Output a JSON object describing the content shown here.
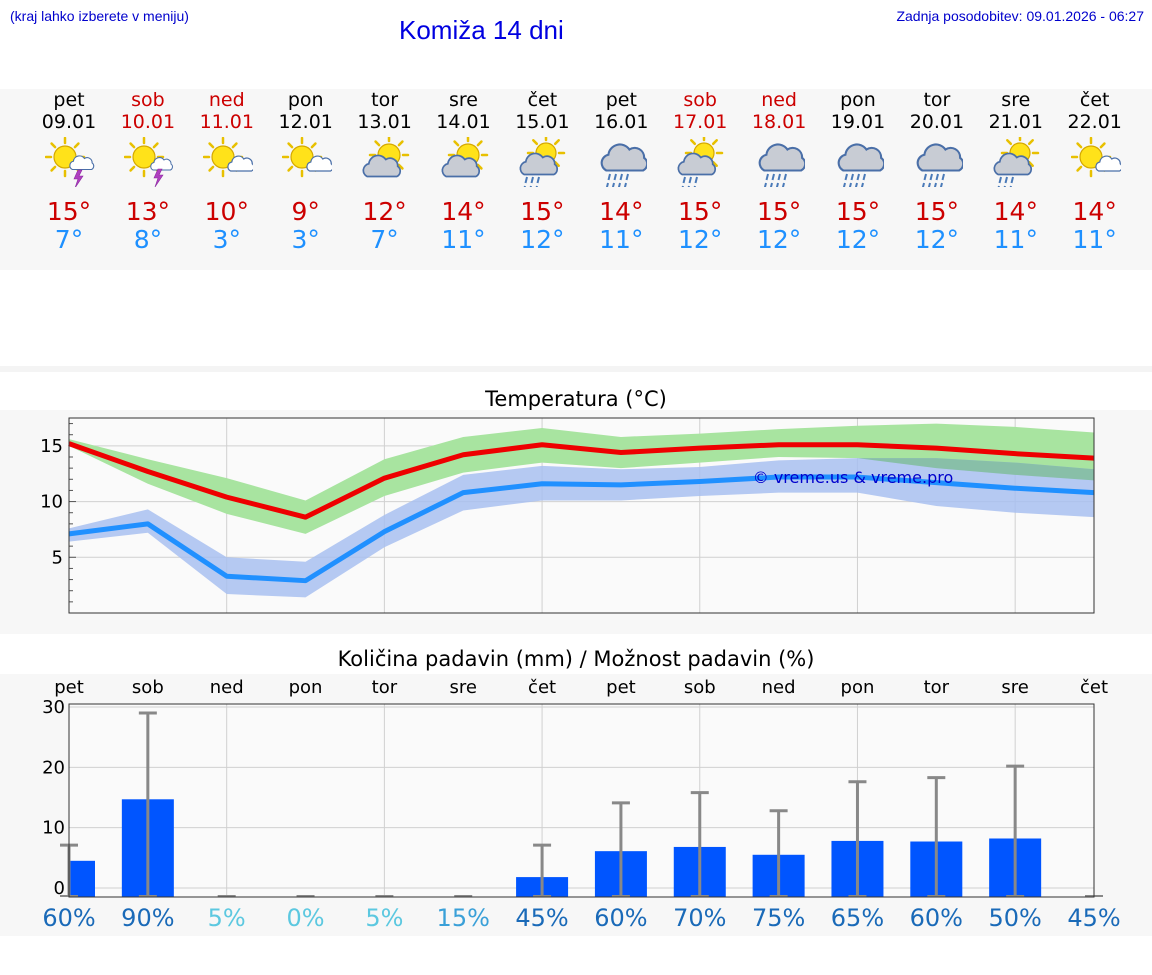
{
  "header": {
    "note": "(kraj lahko izberete v meniju)",
    "title": "Komiža 14 dni",
    "updated": "Zadnja posodobitev: 09.01.2026 - 06:27"
  },
  "days": [
    {
      "name": "pet",
      "date": "09.01",
      "weekend": false,
      "icon": "sun-cloud-thunder-icon",
      "tmax": "15°",
      "tmin": "7°"
    },
    {
      "name": "sob",
      "date": "10.01",
      "weekend": true,
      "icon": "sun-thunder-icon",
      "tmax": "13°",
      "tmin": "8°"
    },
    {
      "name": "ned",
      "date": "11.01",
      "weekend": true,
      "icon": "sun-small-cloud-icon",
      "tmax": "10°",
      "tmin": "3°"
    },
    {
      "name": "pon",
      "date": "12.01",
      "weekend": false,
      "icon": "sun-small-cloud-icon",
      "tmax": "9°",
      "tmin": "3°"
    },
    {
      "name": "tor",
      "date": "13.01",
      "weekend": false,
      "icon": "cloud-sun-icon",
      "tmax": "12°",
      "tmin": "7°"
    },
    {
      "name": "sre",
      "date": "14.01",
      "weekend": false,
      "icon": "cloud-sun-icon",
      "tmax": "14°",
      "tmin": "11°"
    },
    {
      "name": "čet",
      "date": "15.01",
      "weekend": false,
      "icon": "sun-cloud-rain-icon",
      "tmax": "15°",
      "tmin": "12°"
    },
    {
      "name": "pet",
      "date": "16.01",
      "weekend": false,
      "icon": "cloud-rain-icon",
      "tmax": "14°",
      "tmin": "11°"
    },
    {
      "name": "sob",
      "date": "17.01",
      "weekend": true,
      "icon": "sun-cloud-rain-icon",
      "tmax": "15°",
      "tmin": "12°"
    },
    {
      "name": "ned",
      "date": "18.01",
      "weekend": true,
      "icon": "cloud-rain-icon",
      "tmax": "15°",
      "tmin": "12°"
    },
    {
      "name": "pon",
      "date": "19.01",
      "weekend": false,
      "icon": "cloud-rain-icon",
      "tmax": "15°",
      "tmin": "12°"
    },
    {
      "name": "tor",
      "date": "20.01",
      "weekend": false,
      "icon": "cloud-rain-icon",
      "tmax": "15°",
      "tmin": "12°"
    },
    {
      "name": "sre",
      "date": "21.01",
      "weekend": false,
      "icon": "sun-cloud-rain-icon",
      "tmax": "14°",
      "tmin": "11°"
    },
    {
      "name": "čet",
      "date": "22.01",
      "weekend": false,
      "icon": "sun-small-cloud-icon",
      "tmax": "14°",
      "tmin": "11°"
    }
  ],
  "colors": {
    "max_line": "#ee0000",
    "max_band": "#a8e4a0",
    "min_line": "#2090ff",
    "min_band": "#a8c0f0",
    "overlap_band": "#88bfa8",
    "bar": "#0055ff",
    "whisker": "#888888"
  },
  "chart_data": [
    {
      "type": "line",
      "title": "Temperatura (°C)",
      "watermark": "© vreme.us & vreme.pro",
      "x": [
        0,
        1,
        2,
        3,
        4,
        5,
        6,
        7,
        8,
        9,
        10,
        11,
        12,
        13
      ],
      "ylim": [
        0,
        17.5
      ],
      "yticks": [
        5,
        10,
        15
      ],
      "series": [
        {
          "name": "max",
          "values": [
            15.2,
            12.7,
            10.4,
            8.6,
            12.1,
            14.2,
            15.1,
            14.4,
            14.8,
            15.1,
            15.1,
            14.8,
            14.3,
            13.9
          ],
          "band_low": [
            15.0,
            11.6,
            8.9,
            7.1,
            10.5,
            12.6,
            13.5,
            13.0,
            13.5,
            14.0,
            13.9,
            13.0,
            12.4,
            11.9
          ],
          "band_high": [
            15.6,
            13.8,
            12.1,
            10.1,
            13.8,
            15.8,
            16.6,
            15.8,
            16.1,
            16.5,
            16.8,
            17.0,
            16.7,
            16.2
          ]
        },
        {
          "name": "min",
          "values": [
            7.1,
            8.0,
            3.3,
            2.9,
            7.3,
            10.8,
            11.6,
            11.5,
            11.8,
            12.2,
            12.2,
            11.7,
            11.2,
            10.8
          ],
          "band_low": [
            6.4,
            7.2,
            1.7,
            1.4,
            5.9,
            9.2,
            10.1,
            10.1,
            10.5,
            10.8,
            10.8,
            9.6,
            9.0,
            8.6
          ],
          "band_high": [
            7.6,
            9.3,
            5.0,
            4.6,
            8.8,
            12.4,
            13.2,
            12.9,
            13.1,
            13.7,
            13.9,
            13.9,
            13.5,
            12.9
          ]
        }
      ]
    },
    {
      "type": "bar",
      "title": "Količina padavin (mm) / Možnost padavin (%)",
      "categories": [
        "pet",
        "sob",
        "ned",
        "pon",
        "tor",
        "sre",
        "čet",
        "pet",
        "sob",
        "ned",
        "pon",
        "tor",
        "sre",
        "čet"
      ],
      "values": [
        4.5,
        14.7,
        0,
        0,
        0,
        0,
        1.8,
        6.1,
        6.8,
        5.5,
        7.8,
        7.7,
        8.2,
        0
      ],
      "whisker_high": [
        7.1,
        29.0,
        0,
        0,
        0,
        0,
        7.1,
        14.1,
        15.8,
        12.8,
        17.6,
        18.3,
        20.2,
        0
      ],
      "whisker_low": [
        0,
        0,
        0,
        0,
        0,
        0,
        0,
        0,
        0,
        0,
        0,
        0,
        0,
        0
      ],
      "ylim": [
        -1.5,
        30.5
      ],
      "yticks": [
        0,
        10,
        20,
        30
      ],
      "chance": [
        "60%",
        "90%",
        "5%",
        "0%",
        "5%",
        "15%",
        "45%",
        "60%",
        "70%",
        "75%",
        "65%",
        "60%",
        "50%",
        "45%"
      ],
      "chance_values": [
        60,
        90,
        5,
        0,
        5,
        15,
        45,
        60,
        70,
        75,
        65,
        60,
        50,
        45
      ]
    }
  ]
}
